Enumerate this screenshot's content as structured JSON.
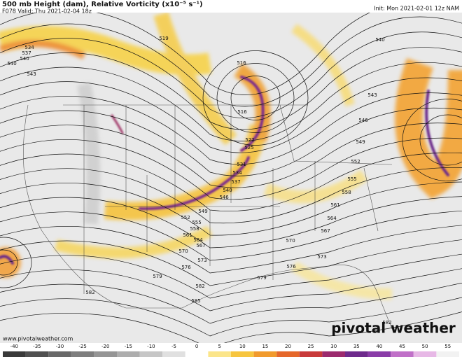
{
  "header": {
    "title": "500 mb Height (dam), Relative Vorticity (x10⁻⁵ s⁻¹)",
    "subtitle": "F078 Valid: Thu 2021-02-04 18z",
    "init": "Init: Mon 2021-02-01 12z NAM"
  },
  "map": {
    "contour_labels": [
      "534",
      "537",
      "540",
      "540",
      "543",
      "519",
      "516",
      "516",
      "522",
      "525",
      "531",
      "534",
      "537",
      "540",
      "546",
      "549",
      "552",
      "555",
      "558",
      "561",
      "564",
      "567",
      "570",
      "573",
      "576",
      "579",
      "582",
      "582",
      "585",
      "543",
      "546",
      "549",
      "552",
      "555",
      "558",
      "561",
      "564",
      "567",
      "570",
      "573",
      "576",
      "579",
      "540",
      "582"
    ]
  },
  "watermark": {
    "brand": "pivotal weather",
    "url": "www.pivotalweather.com"
  },
  "colorbar": {
    "ticks": [
      -40,
      -35,
      -30,
      -25,
      -20,
      -15,
      -10,
      -5,
      0,
      5,
      10,
      15,
      20,
      25,
      30,
      35,
      40,
      45,
      50,
      55
    ]
  }
}
